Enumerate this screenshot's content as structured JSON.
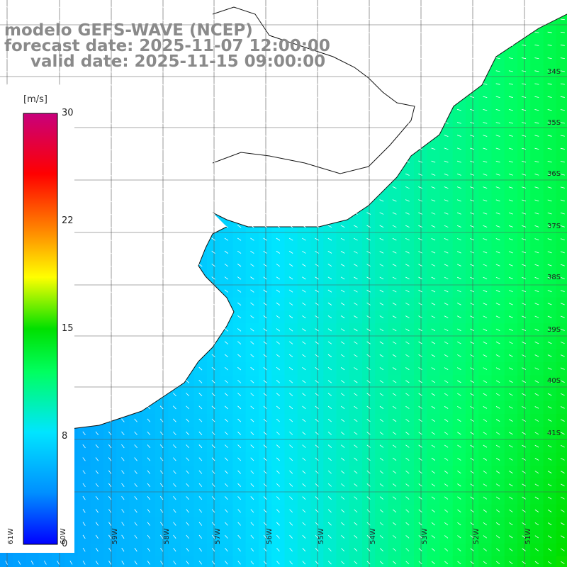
{
  "title": {
    "line1": "modelo GEFS-WAVE (NCEP)",
    "line2": "forecast date: 2025-11-07 12:00:00",
    "line3": "valid date: 2025-11-15 09:00:00"
  },
  "colorbar": {
    "unit": "[m/s]",
    "ticks": [
      "30",
      "22",
      "15",
      "8",
      "0"
    ],
    "stops": [
      "#0000ff",
      "#0080ff",
      "#00e5ff",
      "#00ff80",
      "#00d800",
      "#ffff00",
      "#ff8000",
      "#ff0000",
      "#c8007c"
    ]
  },
  "lat_labels": [
    "34S",
    "35S",
    "36S",
    "37S",
    "38S",
    "39S",
    "40S",
    "41S"
  ],
  "lon_labels": [
    "61W",
    "60W",
    "59W",
    "58W",
    "57W",
    "56W",
    "55W",
    "54W",
    "53W",
    "52W",
    "51W"
  ]
}
